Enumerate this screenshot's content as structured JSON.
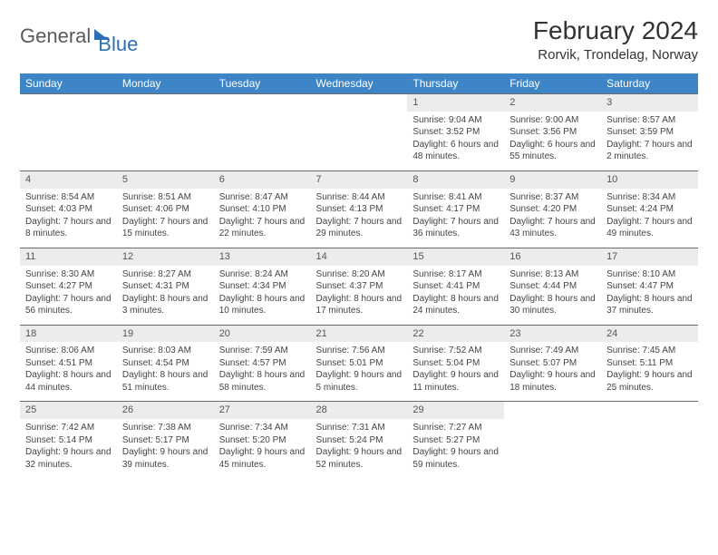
{
  "brand": {
    "part1": "General",
    "part2": "Blue"
  },
  "title": "February 2024",
  "location": "Rorvik, Trondelag, Norway",
  "colors": {
    "header_bg": "#3d85c6",
    "header_fg": "#ffffff",
    "daynum_bg": "#ececec",
    "border": "#6b6b6b",
    "text": "#444444"
  },
  "dow": [
    "Sunday",
    "Monday",
    "Tuesday",
    "Wednesday",
    "Thursday",
    "Friday",
    "Saturday"
  ],
  "weeks": [
    [
      null,
      null,
      null,
      null,
      {
        "n": "1",
        "sr": "9:04 AM",
        "ss": "3:52 PM",
        "dl": "6 hours and 48 minutes."
      },
      {
        "n": "2",
        "sr": "9:00 AM",
        "ss": "3:56 PM",
        "dl": "6 hours and 55 minutes."
      },
      {
        "n": "3",
        "sr": "8:57 AM",
        "ss": "3:59 PM",
        "dl": "7 hours and 2 minutes."
      }
    ],
    [
      {
        "n": "4",
        "sr": "8:54 AM",
        "ss": "4:03 PM",
        "dl": "7 hours and 8 minutes."
      },
      {
        "n": "5",
        "sr": "8:51 AM",
        "ss": "4:06 PM",
        "dl": "7 hours and 15 minutes."
      },
      {
        "n": "6",
        "sr": "8:47 AM",
        "ss": "4:10 PM",
        "dl": "7 hours and 22 minutes."
      },
      {
        "n": "7",
        "sr": "8:44 AM",
        "ss": "4:13 PM",
        "dl": "7 hours and 29 minutes."
      },
      {
        "n": "8",
        "sr": "8:41 AM",
        "ss": "4:17 PM",
        "dl": "7 hours and 36 minutes."
      },
      {
        "n": "9",
        "sr": "8:37 AM",
        "ss": "4:20 PM",
        "dl": "7 hours and 43 minutes."
      },
      {
        "n": "10",
        "sr": "8:34 AM",
        "ss": "4:24 PM",
        "dl": "7 hours and 49 minutes."
      }
    ],
    [
      {
        "n": "11",
        "sr": "8:30 AM",
        "ss": "4:27 PM",
        "dl": "7 hours and 56 minutes."
      },
      {
        "n": "12",
        "sr": "8:27 AM",
        "ss": "4:31 PM",
        "dl": "8 hours and 3 minutes."
      },
      {
        "n": "13",
        "sr": "8:24 AM",
        "ss": "4:34 PM",
        "dl": "8 hours and 10 minutes."
      },
      {
        "n": "14",
        "sr": "8:20 AM",
        "ss": "4:37 PM",
        "dl": "8 hours and 17 minutes."
      },
      {
        "n": "15",
        "sr": "8:17 AM",
        "ss": "4:41 PM",
        "dl": "8 hours and 24 minutes."
      },
      {
        "n": "16",
        "sr": "8:13 AM",
        "ss": "4:44 PM",
        "dl": "8 hours and 30 minutes."
      },
      {
        "n": "17",
        "sr": "8:10 AM",
        "ss": "4:47 PM",
        "dl": "8 hours and 37 minutes."
      }
    ],
    [
      {
        "n": "18",
        "sr": "8:06 AM",
        "ss": "4:51 PM",
        "dl": "8 hours and 44 minutes."
      },
      {
        "n": "19",
        "sr": "8:03 AM",
        "ss": "4:54 PM",
        "dl": "8 hours and 51 minutes."
      },
      {
        "n": "20",
        "sr": "7:59 AM",
        "ss": "4:57 PM",
        "dl": "8 hours and 58 minutes."
      },
      {
        "n": "21",
        "sr": "7:56 AM",
        "ss": "5:01 PM",
        "dl": "9 hours and 5 minutes."
      },
      {
        "n": "22",
        "sr": "7:52 AM",
        "ss": "5:04 PM",
        "dl": "9 hours and 11 minutes."
      },
      {
        "n": "23",
        "sr": "7:49 AM",
        "ss": "5:07 PM",
        "dl": "9 hours and 18 minutes."
      },
      {
        "n": "24",
        "sr": "7:45 AM",
        "ss": "5:11 PM",
        "dl": "9 hours and 25 minutes."
      }
    ],
    [
      {
        "n": "25",
        "sr": "7:42 AM",
        "ss": "5:14 PM",
        "dl": "9 hours and 32 minutes."
      },
      {
        "n": "26",
        "sr": "7:38 AM",
        "ss": "5:17 PM",
        "dl": "9 hours and 39 minutes."
      },
      {
        "n": "27",
        "sr": "7:34 AM",
        "ss": "5:20 PM",
        "dl": "9 hours and 45 minutes."
      },
      {
        "n": "28",
        "sr": "7:31 AM",
        "ss": "5:24 PM",
        "dl": "9 hours and 52 minutes."
      },
      {
        "n": "29",
        "sr": "7:27 AM",
        "ss": "5:27 PM",
        "dl": "9 hours and 59 minutes."
      },
      null,
      null
    ]
  ],
  "labels": {
    "sunrise": "Sunrise:",
    "sunset": "Sunset:",
    "daylight": "Daylight:"
  }
}
